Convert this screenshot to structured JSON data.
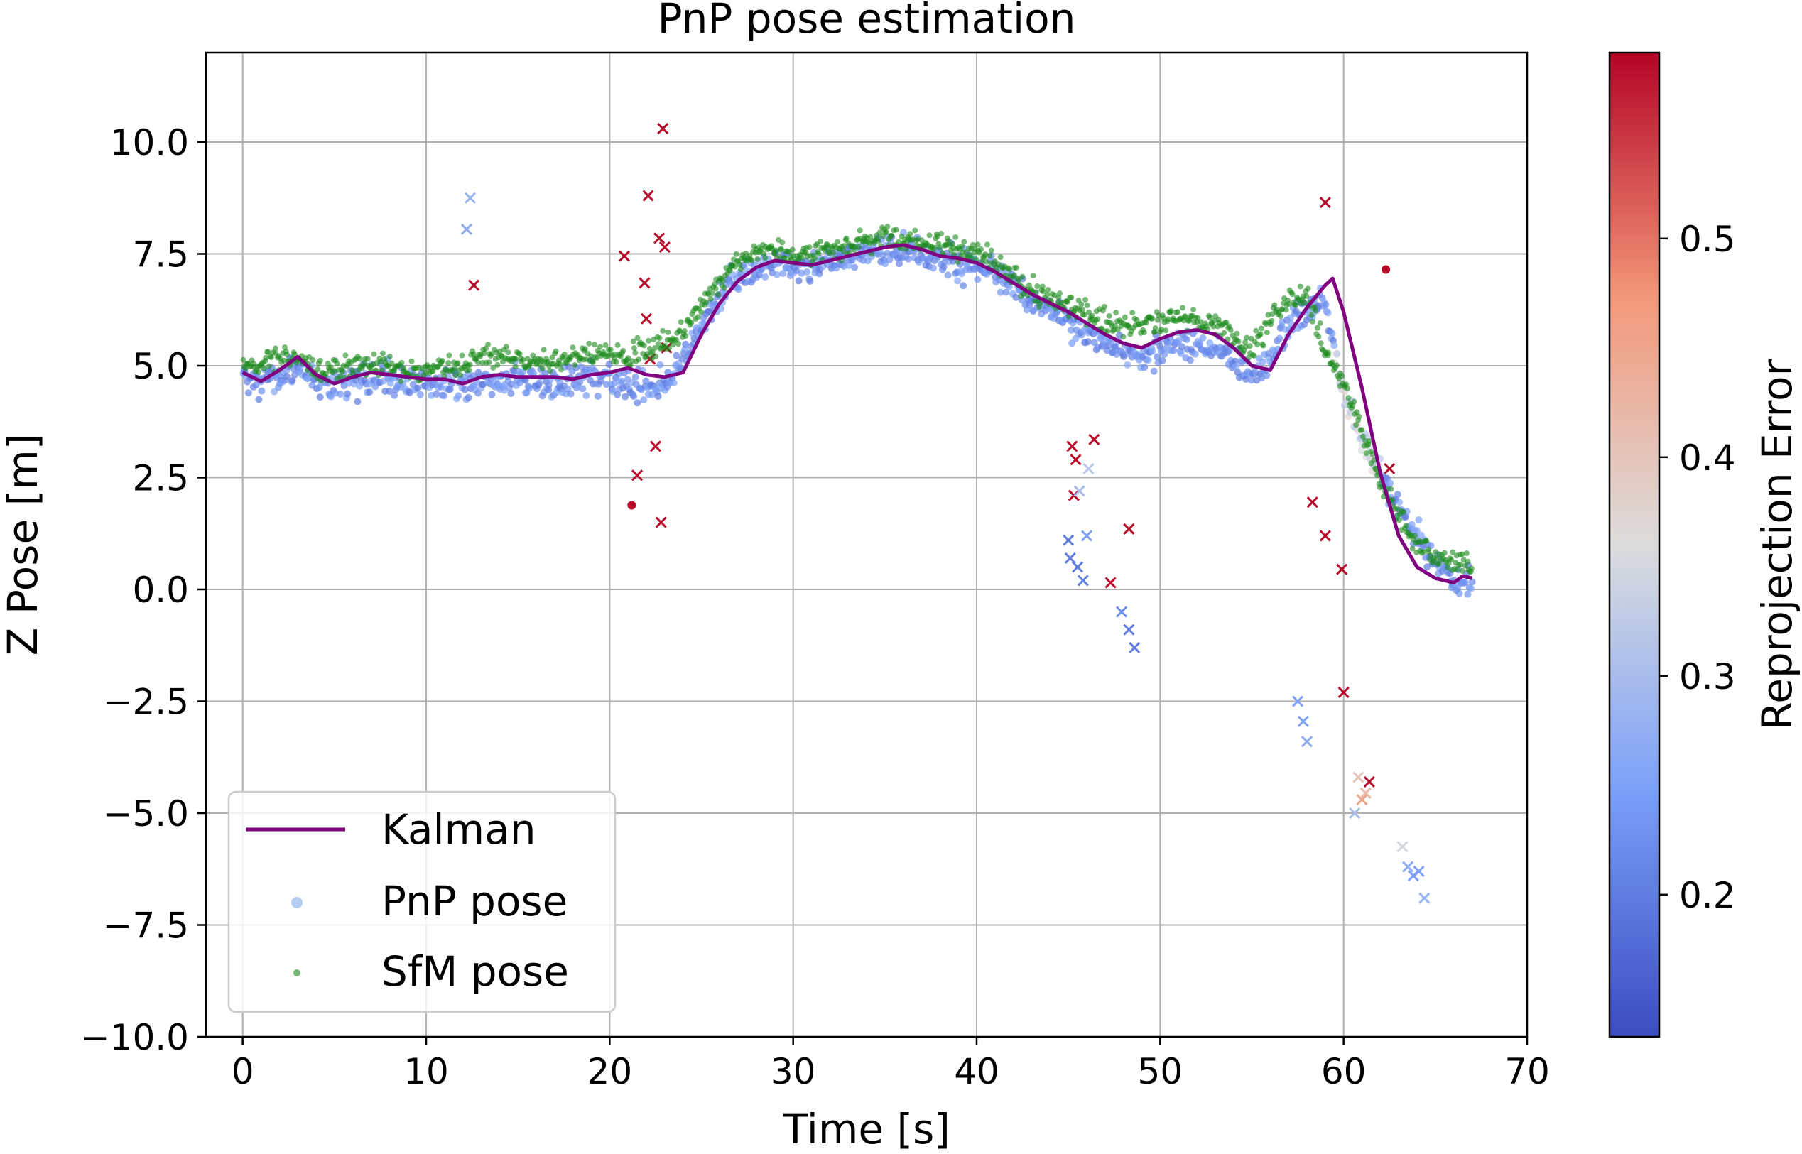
{
  "chart_data": {
    "type": "scatter",
    "title": "PnP pose estimation",
    "xlabel": "Time [s]",
    "ylabel": "Z Pose [m]",
    "xlim": [
      -2,
      70
    ],
    "ylim": [
      -10,
      12
    ],
    "xticks": [
      0,
      10,
      20,
      30,
      40,
      50,
      60,
      70
    ],
    "xtick_labels": [
      "0",
      "10",
      "20",
      "30",
      "40",
      "50",
      "60",
      "70"
    ],
    "yticks": [
      -10,
      -7.5,
      -5,
      -2.5,
      0,
      2.5,
      5,
      7.5,
      10
    ],
    "ytick_labels": [
      "−10.0",
      "−7.5",
      "−5.0",
      "−2.5",
      "0.0",
      "2.5",
      "5.0",
      "7.5",
      "10.0"
    ],
    "grid": true,
    "legend_position": "lower-left",
    "legend": [
      "Kalman",
      "PnP pose",
      "SfM pose"
    ],
    "colorbar": {
      "label": "Reprojection Error",
      "range": [
        0.135,
        0.585
      ],
      "ticks": [
        0.2,
        0.3,
        0.4,
        0.5
      ],
      "tick_labels": [
        "0.2",
        "0.3",
        "0.4",
        "0.5"
      ],
      "colormap": "coolwarm"
    },
    "colors": {
      "kalman": "#800080",
      "sfm": "#1a8a1a",
      "pnp_legend": "#b3cdf0",
      "outlier": "#c0374a"
    },
    "series": [
      {
        "name": "Kalman",
        "kind": "line",
        "x": [
          0,
          1,
          2,
          3,
          4,
          5,
          6,
          7,
          8,
          9,
          10,
          11,
          12,
          13,
          14,
          15,
          16,
          17,
          18,
          19,
          20,
          21,
          22,
          23,
          24,
          25,
          26,
          27,
          28,
          29,
          30,
          31,
          32,
          33,
          34,
          35,
          36,
          37,
          38,
          39,
          40,
          41,
          42,
          43,
          44,
          45,
          46,
          47,
          48,
          49,
          50,
          51,
          52,
          53,
          54,
          55,
          56,
          57,
          58,
          59,
          59.4,
          60,
          61,
          62,
          63,
          64,
          65,
          66,
          66.5,
          67
        ],
        "y": [
          4.85,
          4.65,
          4.9,
          5.2,
          4.8,
          4.6,
          4.75,
          4.85,
          4.8,
          4.75,
          4.7,
          4.7,
          4.6,
          4.75,
          4.8,
          4.75,
          4.75,
          4.75,
          4.7,
          4.8,
          4.85,
          4.95,
          4.8,
          4.75,
          4.85,
          5.7,
          6.4,
          6.9,
          7.2,
          7.35,
          7.3,
          7.25,
          7.35,
          7.45,
          7.55,
          7.65,
          7.7,
          7.6,
          7.45,
          7.4,
          7.3,
          7.1,
          6.85,
          6.6,
          6.4,
          6.2,
          5.95,
          5.7,
          5.5,
          5.4,
          5.6,
          5.75,
          5.8,
          5.7,
          5.4,
          5.0,
          4.9,
          5.7,
          6.3,
          6.8,
          6.95,
          6.2,
          4.5,
          2.6,
          1.2,
          0.5,
          0.25,
          0.15,
          0.3,
          0.25
        ]
      },
      {
        "name": "PnP pose",
        "kind": "scatter",
        "x": [
          0,
          1,
          2,
          3,
          4,
          5,
          6,
          7,
          8,
          9,
          10,
          11,
          12,
          13,
          14,
          15,
          16,
          17,
          18,
          19,
          20,
          21,
          22,
          23,
          24,
          25,
          26,
          27,
          28,
          29,
          30,
          31,
          32,
          33,
          34,
          35,
          36,
          37,
          38,
          39,
          40,
          41,
          42,
          43,
          44,
          45,
          46,
          47,
          48,
          49,
          50,
          51,
          52,
          53,
          54,
          55,
          56,
          57,
          58,
          59,
          60,
          61,
          62,
          63,
          64,
          65,
          66,
          67
        ],
        "y": [
          4.7,
          4.6,
          4.8,
          4.9,
          4.7,
          4.6,
          4.7,
          4.7,
          4.7,
          4.6,
          4.6,
          4.6,
          4.6,
          4.6,
          4.6,
          4.7,
          4.6,
          4.6,
          4.6,
          4.7,
          4.7,
          4.6,
          4.5,
          4.6,
          5.2,
          5.9,
          6.6,
          7.0,
          7.2,
          7.3,
          7.2,
          7.2,
          7.3,
          7.4,
          7.5,
          7.6,
          7.6,
          7.5,
          7.4,
          7.3,
          7.2,
          7.0,
          6.7,
          6.4,
          6.2,
          6.0,
          5.8,
          5.5,
          5.3,
          5.2,
          5.4,
          5.5,
          5.5,
          5.4,
          5.1,
          4.8,
          5.2,
          5.9,
          6.3,
          6.4,
          4.2,
          3.4,
          2.6,
          1.8,
          1.2,
          0.6,
          0.3,
          0.1
        ]
      },
      {
        "name": "SfM pose",
        "kind": "scatter",
        "x": [
          0,
          1,
          2,
          3,
          4,
          5,
          6,
          7,
          8,
          9,
          10,
          11,
          12,
          13,
          14,
          15,
          16,
          17,
          18,
          19,
          20,
          21,
          22,
          23,
          24,
          25,
          26,
          27,
          28,
          29,
          30,
          31,
          32,
          33,
          34,
          35,
          36,
          37,
          38,
          39,
          40,
          41,
          42,
          43,
          44,
          45,
          46,
          47,
          48,
          49,
          50,
          51,
          52,
          53,
          54,
          55,
          56,
          57,
          58,
          59,
          60,
          61,
          62,
          63,
          64,
          65,
          66,
          67
        ],
        "y": [
          5.0,
          5.0,
          5.2,
          5.1,
          4.9,
          4.9,
          5.0,
          5.0,
          5.0,
          4.9,
          4.9,
          5.0,
          5.0,
          5.2,
          5.2,
          5.1,
          5.1,
          5.1,
          5.2,
          5.3,
          5.3,
          5.2,
          5.4,
          5.5,
          5.8,
          6.3,
          6.9,
          7.3,
          7.5,
          7.6,
          7.5,
          7.5,
          7.6,
          7.7,
          7.8,
          7.9,
          7.9,
          7.8,
          7.7,
          7.6,
          7.5,
          7.3,
          7.0,
          6.7,
          6.5,
          6.3,
          6.2,
          6.0,
          5.9,
          5.9,
          6.0,
          6.1,
          6.0,
          5.9,
          5.6,
          5.4,
          6.0,
          6.5,
          6.6,
          5.3,
          4.6,
          3.5,
          2.4,
          1.6,
          1.0,
          0.7,
          0.6,
          0.5
        ]
      }
    ],
    "outliers": [
      {
        "x": 12.2,
        "y": 8.05,
        "err": 0.27,
        "marker": "x"
      },
      {
        "x": 12.4,
        "y": 8.75,
        "err": 0.28,
        "marker": "x"
      },
      {
        "x": 12.6,
        "y": 6.8,
        "err": 0.58,
        "marker": "x"
      },
      {
        "x": 20.8,
        "y": 7.45,
        "err": 0.58,
        "marker": "x"
      },
      {
        "x": 21.2,
        "y": 1.88,
        "err": 0.58,
        "marker": "o"
      },
      {
        "x": 21.5,
        "y": 2.55,
        "err": 0.58,
        "marker": "x"
      },
      {
        "x": 21.9,
        "y": 6.85,
        "err": 0.58,
        "marker": "x"
      },
      {
        "x": 22.0,
        "y": 6.05,
        "err": 0.58,
        "marker": "x"
      },
      {
        "x": 22.1,
        "y": 8.8,
        "err": 0.58,
        "marker": "x"
      },
      {
        "x": 22.2,
        "y": 5.15,
        "err": 0.58,
        "marker": "x"
      },
      {
        "x": 22.5,
        "y": 3.2,
        "err": 0.58,
        "marker": "x"
      },
      {
        "x": 22.7,
        "y": 7.85,
        "err": 0.58,
        "marker": "x"
      },
      {
        "x": 22.8,
        "y": 1.5,
        "err": 0.58,
        "marker": "x"
      },
      {
        "x": 22.9,
        "y": 10.3,
        "err": 0.58,
        "marker": "x"
      },
      {
        "x": 23.0,
        "y": 7.65,
        "err": 0.58,
        "marker": "x"
      },
      {
        "x": 23.1,
        "y": 5.4,
        "err": 0.58,
        "marker": "x"
      },
      {
        "x": 45.0,
        "y": 1.1,
        "err": 0.2,
        "marker": "x"
      },
      {
        "x": 45.1,
        "y": 0.7,
        "err": 0.2,
        "marker": "x"
      },
      {
        "x": 45.2,
        "y": 3.2,
        "err": 0.58,
        "marker": "x"
      },
      {
        "x": 45.3,
        "y": 2.1,
        "err": 0.58,
        "marker": "x"
      },
      {
        "x": 45.4,
        "y": 2.9,
        "err": 0.58,
        "marker": "x"
      },
      {
        "x": 45.5,
        "y": 0.5,
        "err": 0.2,
        "marker": "x"
      },
      {
        "x": 45.6,
        "y": 2.2,
        "err": 0.3,
        "marker": "x"
      },
      {
        "x": 45.8,
        "y": 0.2,
        "err": 0.2,
        "marker": "x"
      },
      {
        "x": 46.0,
        "y": 1.2,
        "err": 0.25,
        "marker": "x"
      },
      {
        "x": 46.1,
        "y": 2.7,
        "err": 0.32,
        "marker": "x"
      },
      {
        "x": 46.4,
        "y": 3.35,
        "err": 0.58,
        "marker": "x"
      },
      {
        "x": 47.3,
        "y": 0.15,
        "err": 0.58,
        "marker": "x"
      },
      {
        "x": 47.9,
        "y": -0.5,
        "err": 0.22,
        "marker": "x"
      },
      {
        "x": 48.3,
        "y": 1.35,
        "err": 0.58,
        "marker": "x"
      },
      {
        "x": 48.3,
        "y": -0.9,
        "err": 0.2,
        "marker": "x"
      },
      {
        "x": 48.6,
        "y": -1.3,
        "err": 0.2,
        "marker": "x"
      },
      {
        "x": 57.5,
        "y": -2.5,
        "err": 0.25,
        "marker": "x"
      },
      {
        "x": 57.8,
        "y": -2.95,
        "err": 0.25,
        "marker": "x"
      },
      {
        "x": 58.0,
        "y": -3.4,
        "err": 0.27,
        "marker": "x"
      },
      {
        "x": 58.3,
        "y": 1.95,
        "err": 0.58,
        "marker": "x"
      },
      {
        "x": 59.0,
        "y": 8.65,
        "err": 0.58,
        "marker": "x"
      },
      {
        "x": 59.0,
        "y": 1.2,
        "err": 0.58,
        "marker": "x"
      },
      {
        "x": 59.9,
        "y": 0.45,
        "err": 0.58,
        "marker": "x"
      },
      {
        "x": 60.0,
        "y": -2.3,
        "err": 0.58,
        "marker": "x"
      },
      {
        "x": 60.6,
        "y": -5.0,
        "err": 0.3,
        "marker": "x"
      },
      {
        "x": 60.8,
        "y": -4.2,
        "err": 0.4,
        "marker": "x"
      },
      {
        "x": 61.0,
        "y": -4.7,
        "err": 0.45,
        "marker": "x"
      },
      {
        "x": 61.2,
        "y": -4.55,
        "err": 0.42,
        "marker": "x"
      },
      {
        "x": 61.4,
        "y": -4.3,
        "err": 0.58,
        "marker": "x"
      },
      {
        "x": 62.3,
        "y": 7.15,
        "err": 0.58,
        "marker": "o"
      },
      {
        "x": 62.5,
        "y": 2.7,
        "err": 0.58,
        "marker": "x"
      },
      {
        "x": 63.2,
        "y": -5.75,
        "err": 0.35,
        "marker": "x"
      },
      {
        "x": 63.5,
        "y": -6.2,
        "err": 0.27,
        "marker": "x"
      },
      {
        "x": 63.8,
        "y": -6.4,
        "err": 0.25,
        "marker": "x"
      },
      {
        "x": 64.1,
        "y": -6.3,
        "err": 0.25,
        "marker": "x"
      },
      {
        "x": 64.4,
        "y": -6.9,
        "err": 0.28,
        "marker": "x"
      }
    ]
  }
}
